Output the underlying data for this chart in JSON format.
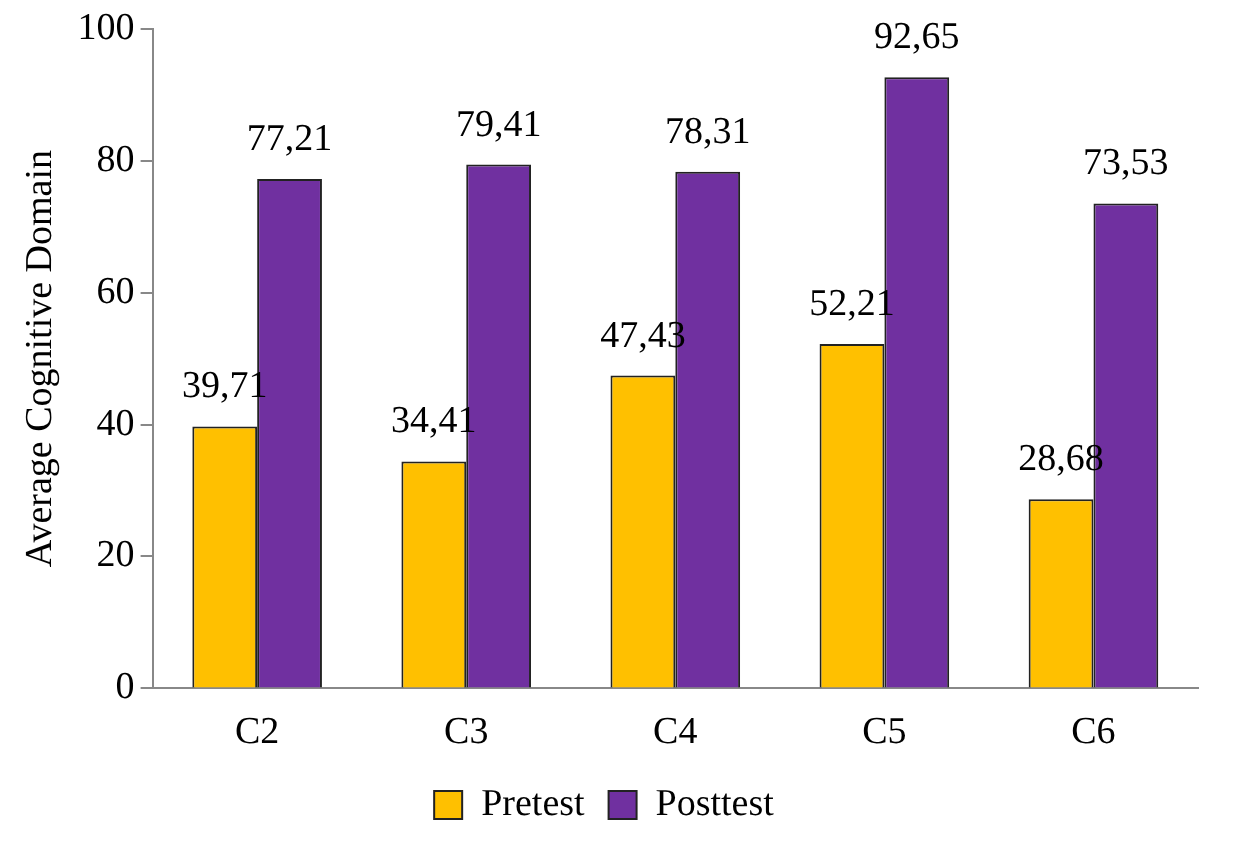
{
  "chart_data": {
    "type": "bar",
    "ylabel": "Average Cognitive Domain",
    "categories": [
      "C2",
      "C3",
      "C4",
      "C5",
      "C6"
    ],
    "series": [
      {
        "name": "Pretest",
        "color": "#ffc000",
        "values": [
          39.71,
          34.41,
          47.43,
          52.21,
          28.68
        ],
        "value_labels": [
          "39,71",
          "34,41",
          "47,43",
          "52,21",
          "28,68"
        ]
      },
      {
        "name": "Posttest",
        "color": "#7030a0",
        "values": [
          77.21,
          79.41,
          78.31,
          92.65,
          73.53
        ],
        "value_labels": [
          "77,21",
          "79,41",
          "78,31",
          "92,65",
          "73,53"
        ]
      }
    ],
    "ylim": [
      0,
      100
    ],
    "yticks": [
      0,
      20,
      40,
      60,
      80,
      100
    ],
    "grid": false,
    "legend": "bottom"
  }
}
